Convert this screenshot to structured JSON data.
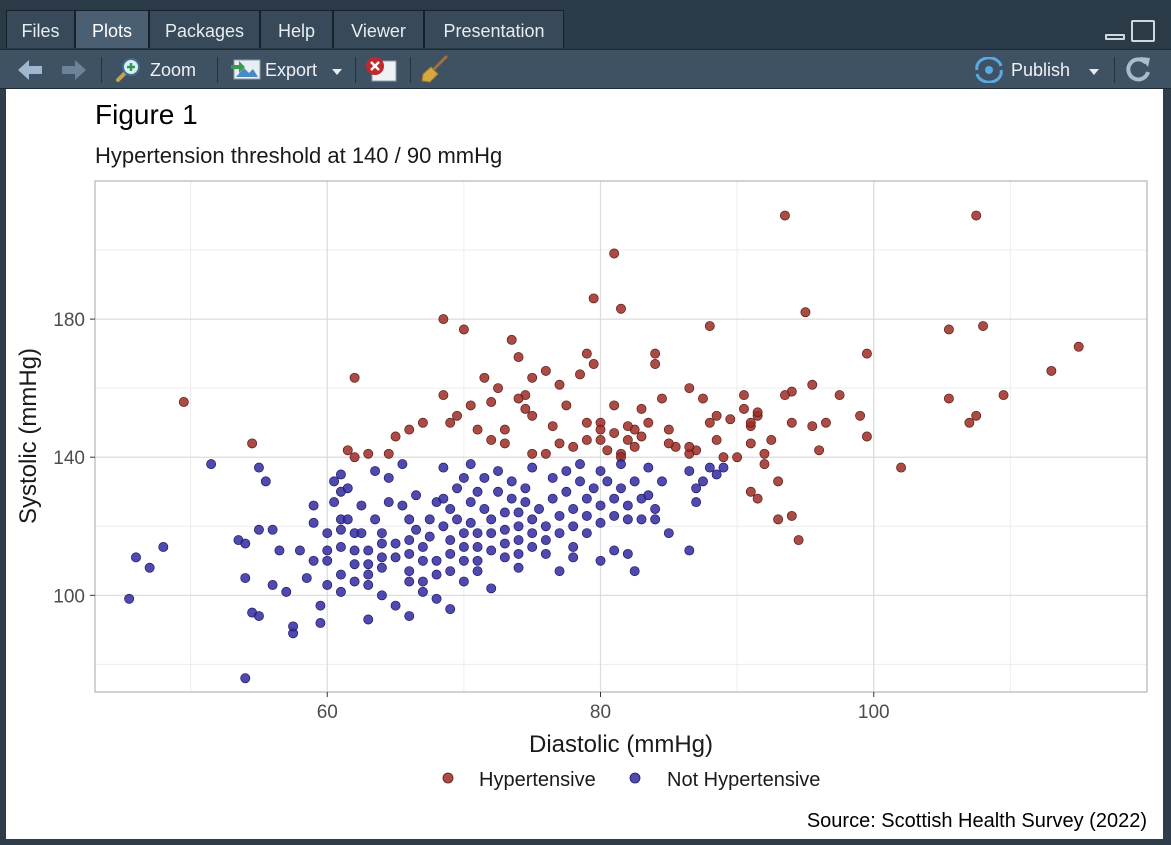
{
  "tabs": [
    {
      "label": "Files",
      "active": false
    },
    {
      "label": "Plots",
      "active": true
    },
    {
      "label": "Packages",
      "active": false
    },
    {
      "label": "Help",
      "active": false
    },
    {
      "label": "Viewer",
      "active": false
    },
    {
      "label": "Presentation",
      "active": false
    }
  ],
  "toolbar": {
    "back_icon": "arrow-left-icon",
    "forward_icon": "arrow-right-icon",
    "zoom_label": "Zoom",
    "export_label": "Export",
    "remove_icon": "remove-plot-icon",
    "clear_icon": "broom-icon",
    "publish_label": "Publish",
    "refresh_icon": "refresh-icon"
  },
  "colors": {
    "hypertensive": "#9b2b24",
    "not_hypertensive": "#332aa0"
  },
  "chart_data": {
    "type": "scatter",
    "title": "Figure 1",
    "subtitle": "Hypertension threshold at 140 / 90 mmHg",
    "xlabel": "Diastolic (mmHg)",
    "ylabel": "Systolic (mmHg)",
    "caption": "Source: Scottish Health Survey (2022)",
    "xlim": [
      43,
      120
    ],
    "ylim": [
      72,
      220
    ],
    "x_ticks": [
      60,
      80,
      100
    ],
    "y_ticks": [
      100,
      140,
      180
    ],
    "grid": true,
    "legend_position": "bottom",
    "series": [
      {
        "name": "Hypertensive",
        "color": "#9b2b24",
        "points": [
          [
            49.5,
            156
          ],
          [
            54.5,
            144
          ],
          [
            62,
            163
          ],
          [
            68.5,
            180
          ],
          [
            70,
            177
          ],
          [
            73.5,
            174
          ],
          [
            81,
            199
          ],
          [
            81.5,
            183
          ],
          [
            79.5,
            186
          ],
          [
            88,
            178
          ],
          [
            93.5,
            210
          ],
          [
            95,
            182
          ],
          [
            107.5,
            210
          ],
          [
            108,
            178
          ],
          [
            105.5,
            177
          ],
          [
            99.5,
            170
          ],
          [
            115,
            172
          ],
          [
            113,
            165
          ],
          [
            109.5,
            158
          ],
          [
            105.5,
            157
          ],
          [
            107.5,
            152
          ],
          [
            107,
            150
          ],
          [
            102,
            137
          ],
          [
            99.5,
            146
          ],
          [
            99,
            152
          ],
          [
            97.5,
            158
          ],
          [
            96.5,
            150
          ],
          [
            95.5,
            161
          ],
          [
            96,
            142
          ],
          [
            95.5,
            149
          ],
          [
            94,
            159
          ],
          [
            94,
            150
          ],
          [
            93.5,
            158
          ],
          [
            92.5,
            145
          ],
          [
            92,
            141
          ],
          [
            91.5,
            152
          ],
          [
            91,
            149
          ],
          [
            91,
            144
          ],
          [
            91,
            150
          ],
          [
            90.5,
            158
          ],
          [
            90.5,
            154
          ],
          [
            91.5,
            153
          ],
          [
            92,
            138
          ],
          [
            91,
            130
          ],
          [
            91.5,
            128
          ],
          [
            93,
            133
          ],
          [
            93,
            122
          ],
          [
            94,
            123
          ],
          [
            94.5,
            116
          ],
          [
            90,
            140
          ],
          [
            89.5,
            151
          ],
          [
            88.5,
            145
          ],
          [
            88,
            150
          ],
          [
            88.5,
            152
          ],
          [
            87.5,
            157
          ],
          [
            87,
            142
          ],
          [
            86.5,
            141
          ],
          [
            86.5,
            160
          ],
          [
            85.5,
            143
          ],
          [
            85,
            144
          ],
          [
            85,
            148
          ],
          [
            84.5,
            157
          ],
          [
            84,
            170
          ],
          [
            84,
            167
          ],
          [
            83.5,
            150
          ],
          [
            83,
            146
          ],
          [
            83,
            154
          ],
          [
            82.5,
            148
          ],
          [
            82,
            149
          ],
          [
            82,
            145
          ],
          [
            81.5,
            141
          ],
          [
            81,
            155
          ],
          [
            81,
            147
          ],
          [
            80,
            150
          ],
          [
            80,
            145
          ],
          [
            80,
            148
          ],
          [
            79.5,
            167
          ],
          [
            79,
            170
          ],
          [
            79,
            150
          ],
          [
            79,
            145
          ],
          [
            78.5,
            164
          ],
          [
            77.5,
            155
          ],
          [
            77,
            161
          ],
          [
            77,
            144
          ],
          [
            76.5,
            149
          ],
          [
            76,
            165
          ],
          [
            75,
            163
          ],
          [
            75,
            152
          ],
          [
            75,
            141
          ],
          [
            74.5,
            158
          ],
          [
            74.5,
            154
          ],
          [
            74,
            169
          ],
          [
            74,
            157
          ],
          [
            73,
            148
          ],
          [
            72.5,
            160
          ],
          [
            72,
            156
          ],
          [
            71.5,
            163
          ],
          [
            71,
            148
          ],
          [
            70.5,
            155
          ],
          [
            69.5,
            152
          ],
          [
            69,
            150
          ],
          [
            68.5,
            158
          ],
          [
            67,
            150
          ],
          [
            66,
            148
          ],
          [
            65,
            146
          ],
          [
            64.5,
            141
          ],
          [
            63,
            141
          ],
          [
            61.5,
            142
          ],
          [
            62,
            140
          ],
          [
            72,
            145
          ],
          [
            73,
            144
          ],
          [
            78,
            143
          ],
          [
            76,
            141
          ],
          [
            82.5,
            143
          ],
          [
            80.5,
            142
          ],
          [
            81.5,
            140
          ],
          [
            86.5,
            143
          ],
          [
            89,
            140
          ]
        ]
      },
      {
        "name": "Not Hypertensive",
        "color": "#332aa0",
        "points": [
          [
            45.5,
            99
          ],
          [
            46,
            111
          ],
          [
            47,
            108
          ],
          [
            48,
            114
          ],
          [
            51.5,
            138
          ],
          [
            53.5,
            116
          ],
          [
            54,
            115
          ],
          [
            54,
            105
          ],
          [
            54,
            76
          ],
          [
            54.5,
            95
          ],
          [
            55,
            94
          ],
          [
            55,
            119
          ],
          [
            55,
            137
          ],
          [
            55.5,
            133
          ],
          [
            56,
            103
          ],
          [
            56,
            119
          ],
          [
            56.5,
            113
          ],
          [
            57,
            101
          ],
          [
            57.5,
            89
          ],
          [
            57.5,
            91
          ],
          [
            58,
            113
          ],
          [
            58.5,
            105
          ],
          [
            59,
            121
          ],
          [
            59,
            110
          ],
          [
            59,
            126
          ],
          [
            59.5,
            92
          ],
          [
            59.5,
            97
          ],
          [
            60,
            118
          ],
          [
            60,
            103
          ],
          [
            60,
            110
          ],
          [
            60,
            113
          ],
          [
            60.5,
            127
          ],
          [
            60.5,
            133
          ],
          [
            61,
            119
          ],
          [
            61,
            122
          ],
          [
            61,
            114
          ],
          [
            61,
            106
          ],
          [
            61,
            101
          ],
          [
            61,
            130
          ],
          [
            61,
            135
          ],
          [
            61.5,
            131
          ],
          [
            61.5,
            122
          ],
          [
            62,
            118
          ],
          [
            62,
            113
          ],
          [
            62,
            109
          ],
          [
            62,
            104
          ],
          [
            62.5,
            126
          ],
          [
            62.5,
            118
          ],
          [
            63,
            113
          ],
          [
            63,
            109
          ],
          [
            63,
            106
          ],
          [
            63,
            103
          ],
          [
            63,
            93
          ],
          [
            63.5,
            136
          ],
          [
            63.5,
            122
          ],
          [
            64,
            118
          ],
          [
            64,
            115
          ],
          [
            64,
            111
          ],
          [
            64,
            108
          ],
          [
            64,
            100
          ],
          [
            64.5,
            134
          ],
          [
            64.5,
            127
          ],
          [
            65,
            115
          ],
          [
            65,
            111
          ],
          [
            65,
            97
          ],
          [
            65.5,
            138
          ],
          [
            65.5,
            126
          ],
          [
            66,
            122
          ],
          [
            66,
            116
          ],
          [
            66,
            112
          ],
          [
            66,
            107
          ],
          [
            66,
            104
          ],
          [
            66,
            94
          ],
          [
            66.5,
            129
          ],
          [
            66.5,
            119
          ],
          [
            67,
            114
          ],
          [
            67,
            110
          ],
          [
            67,
            104
          ],
          [
            67,
            101
          ],
          [
            67.5,
            122
          ],
          [
            67.5,
            117
          ],
          [
            68,
            127
          ],
          [
            68,
            110
          ],
          [
            68,
            106
          ],
          [
            68,
            99
          ],
          [
            68.5,
            137
          ],
          [
            68.5,
            128
          ],
          [
            68.5,
            120
          ],
          [
            69,
            125
          ],
          [
            69,
            116
          ],
          [
            69,
            112
          ],
          [
            69,
            107
          ],
          [
            69,
            96
          ],
          [
            69.5,
            131
          ],
          [
            69.5,
            122
          ],
          [
            70,
            118
          ],
          [
            70,
            114
          ],
          [
            70,
            110
          ],
          [
            70,
            104
          ],
          [
            70,
            134
          ],
          [
            70.5,
            138
          ],
          [
            70.5,
            127
          ],
          [
            70.5,
            121
          ],
          [
            71,
            118
          ],
          [
            71,
            114
          ],
          [
            71,
            110
          ],
          [
            71,
            107
          ],
          [
            71,
            130
          ],
          [
            71.5,
            125
          ],
          [
            71.5,
            134
          ],
          [
            72,
            122
          ],
          [
            72,
            118
          ],
          [
            72,
            113
          ],
          [
            72,
            102
          ],
          [
            72.5,
            130
          ],
          [
            72.5,
            136
          ],
          [
            73,
            124
          ],
          [
            73,
            119
          ],
          [
            73,
            115
          ],
          [
            73,
            111
          ],
          [
            73.5,
            128
          ],
          [
            73.5,
            133
          ],
          [
            74,
            124
          ],
          [
            74,
            120
          ],
          [
            74,
            116
          ],
          [
            74,
            112
          ],
          [
            74,
            108
          ],
          [
            74.5,
            127
          ],
          [
            74.5,
            131
          ],
          [
            75,
            122
          ],
          [
            75,
            118
          ],
          [
            75,
            114
          ],
          [
            75,
            137
          ],
          [
            75.5,
            125
          ],
          [
            76,
            120
          ],
          [
            76,
            116
          ],
          [
            76,
            112
          ],
          [
            76.5,
            134
          ],
          [
            76.5,
            128
          ],
          [
            77,
            123
          ],
          [
            77,
            118
          ],
          [
            77,
            107
          ],
          [
            77.5,
            136
          ],
          [
            77.5,
            130
          ],
          [
            78,
            125
          ],
          [
            78,
            120
          ],
          [
            78,
            114
          ],
          [
            78,
            111
          ],
          [
            78.5,
            138
          ],
          [
            78.5,
            133
          ],
          [
            79,
            128
          ],
          [
            79,
            123
          ],
          [
            79,
            118
          ],
          [
            79.5,
            131
          ],
          [
            80,
            136
          ],
          [
            80,
            126
          ],
          [
            80,
            121
          ],
          [
            80,
            110
          ],
          [
            80.5,
            133
          ],
          [
            81,
            128
          ],
          [
            81,
            123
          ],
          [
            81,
            113
          ],
          [
            81.5,
            138
          ],
          [
            81.5,
            131
          ],
          [
            82,
            126
          ],
          [
            82,
            122
          ],
          [
            82,
            112
          ],
          [
            82.5,
            133
          ],
          [
            82.5,
            107
          ],
          [
            83,
            128
          ],
          [
            83,
            122
          ],
          [
            83.5,
            137
          ],
          [
            83.5,
            129
          ],
          [
            84,
            125
          ],
          [
            84,
            122
          ],
          [
            84.5,
            133
          ],
          [
            85,
            118
          ],
          [
            86.5,
            136
          ],
          [
            86.5,
            113
          ],
          [
            87,
            131
          ],
          [
            87,
            127
          ],
          [
            87.5,
            133
          ],
          [
            88,
            137
          ],
          [
            88.5,
            135
          ],
          [
            89,
            137
          ]
        ]
      }
    ]
  }
}
